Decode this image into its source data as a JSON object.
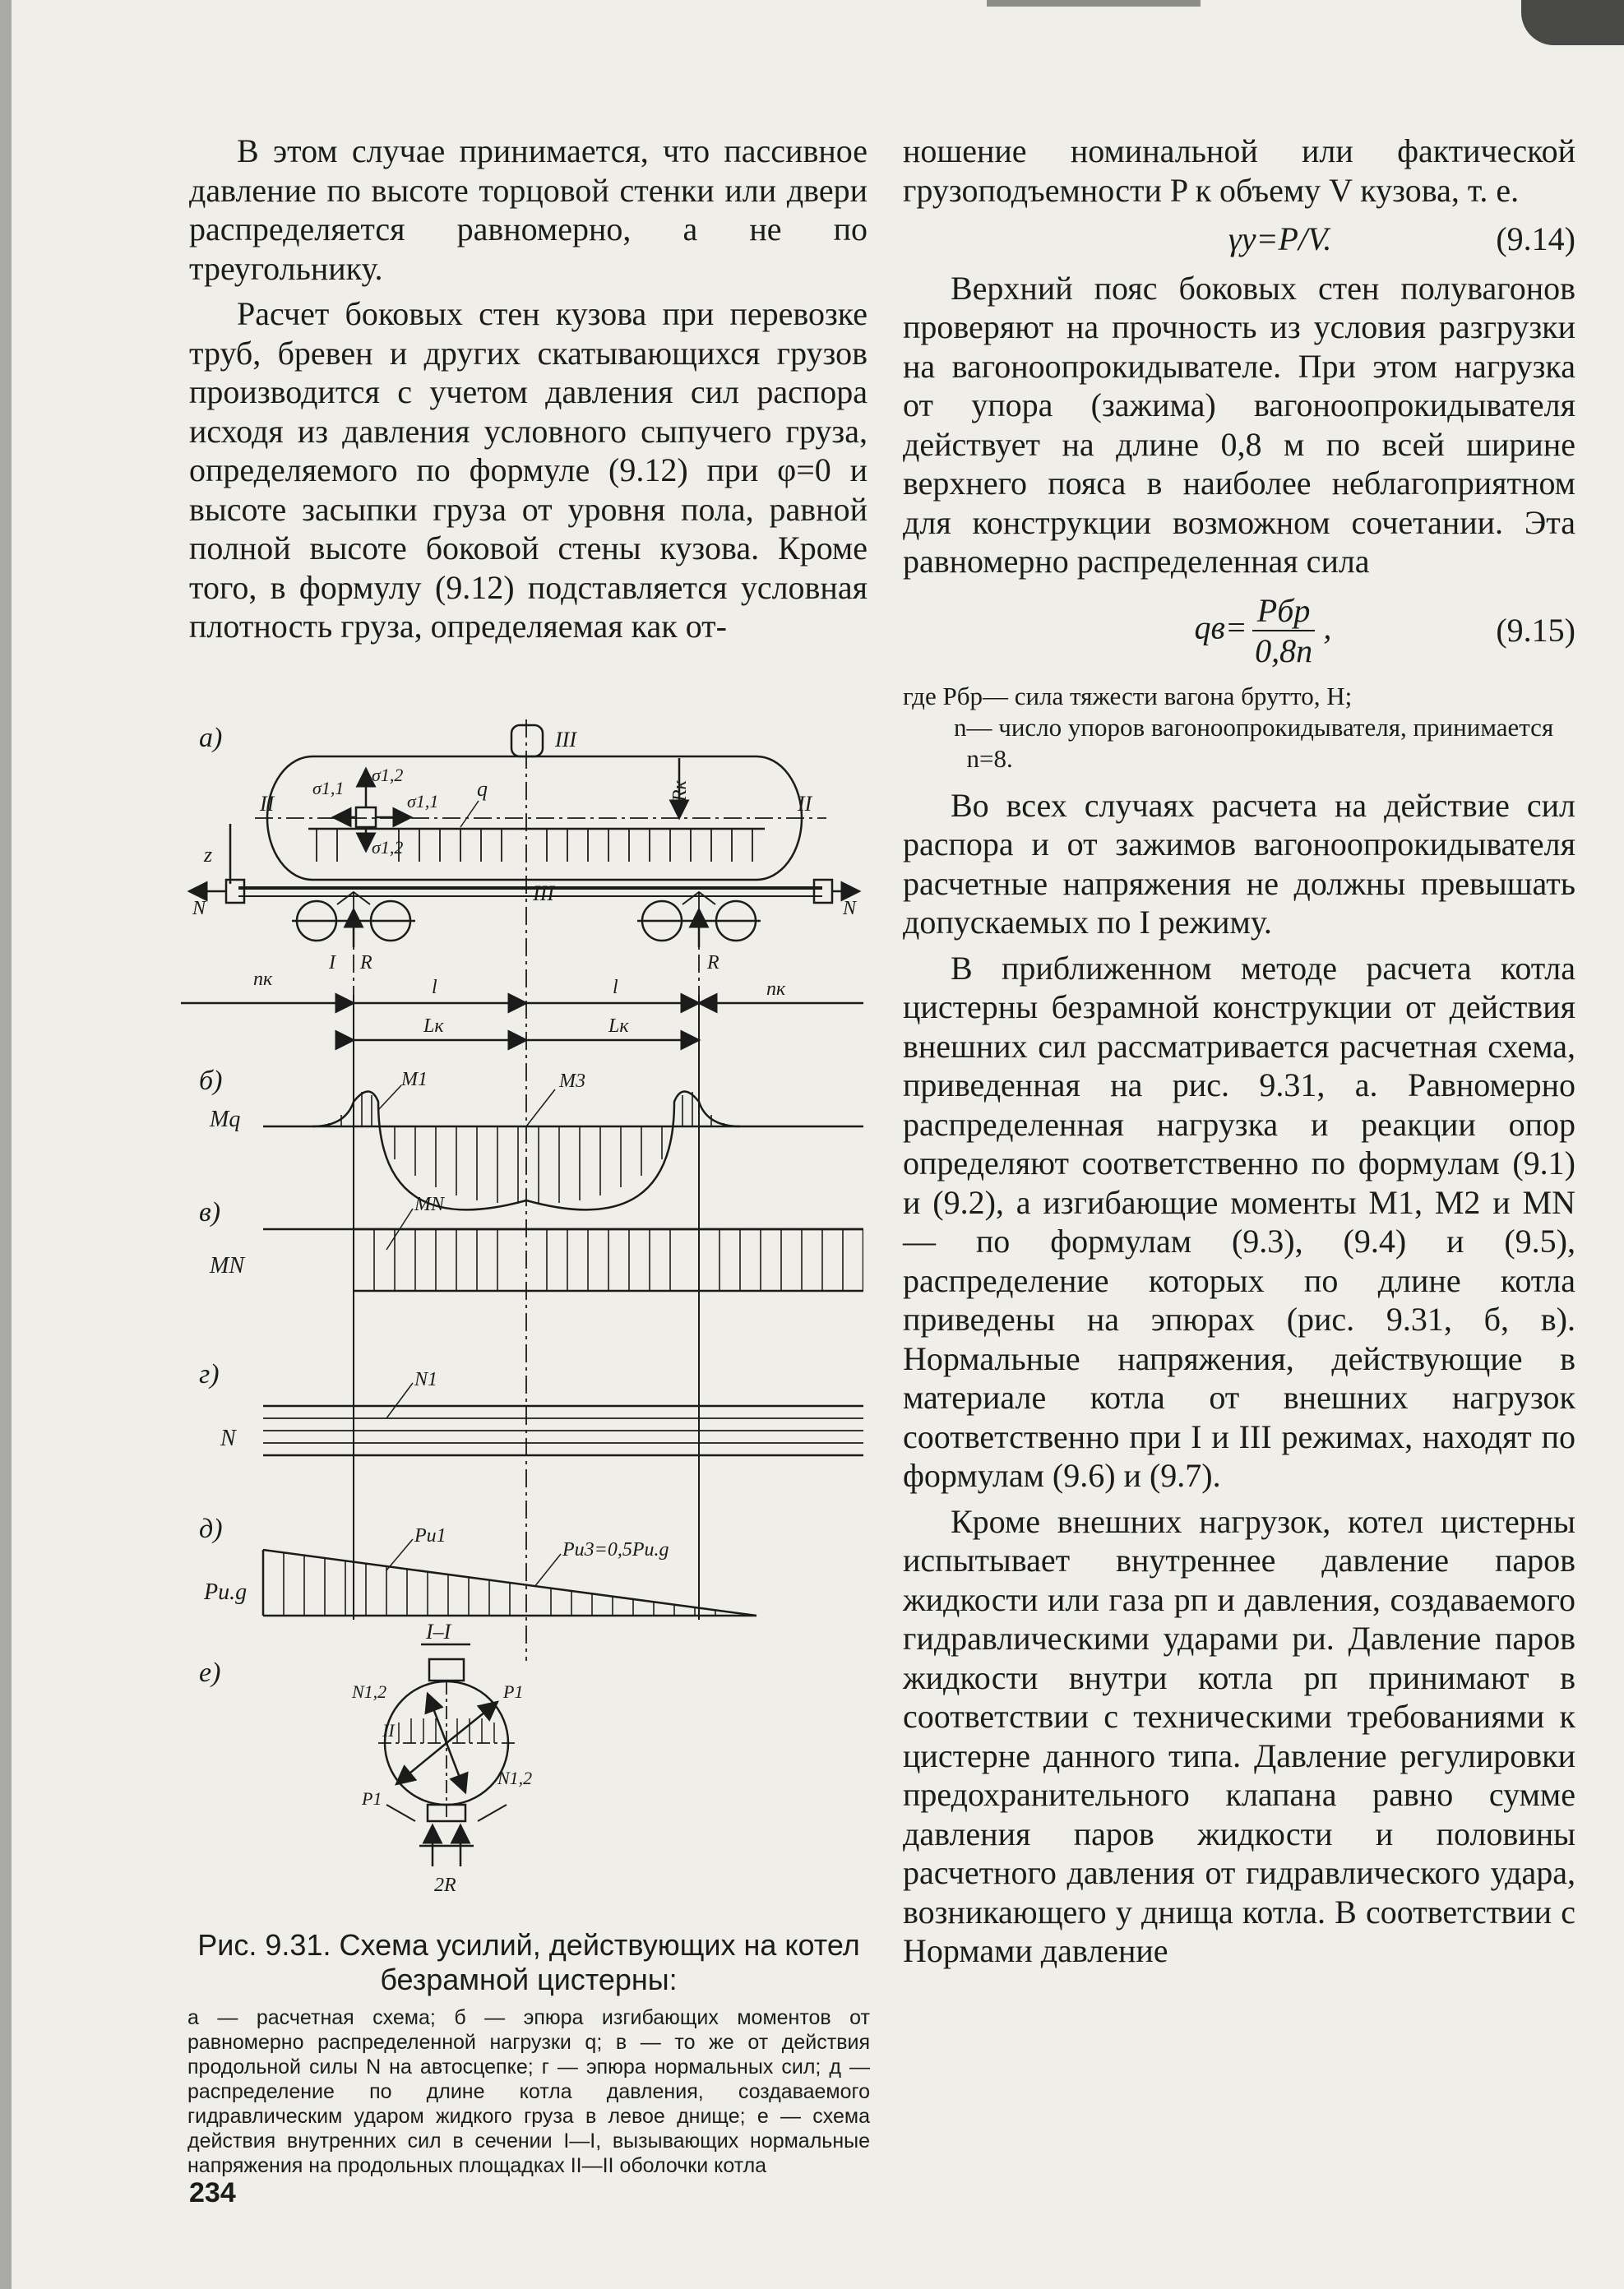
{
  "left_column": {
    "p1": "В этом случае принимается, что пассивное давление по высоте торцовой стенки или двери распределяется равномерно, а не по треугольнику.",
    "p2": "Расчет боковых стен кузова при перевозке труб, бревен и других скатывающихся грузов производится с учетом давления сил распора исходя из давления условного сыпучего груза, определяемого по формуле (9.12) при φ=0 и высоте засыпки груза от уровня пола, равной полной высоте боковой стены кузова. Кроме того, в формулу (9.12) подставляется условная плотность груза, определяемая как от-"
  },
  "right_column": {
    "p1": "ношение номинальной или фактической грузоподъемности P к объему V кузова, т. е.",
    "formula_914": {
      "expr": "γу=P/V.",
      "number": "(9.14)"
    },
    "p2": "Верхний пояс боковых стен полувагонов проверяют на прочность из условия разгрузки на вагоноопрокидывателе. При этом нагрузка от упора (зажима) вагоноопрокидывателя действует на длине 0,8 м по всей ширине верхнего пояса в наиболее неблагоприятном для конструкции возможном сочетании. Эта равномерно распределенная сила",
    "formula_915": {
      "lhs": "qв=",
      "numerator": "Pбр",
      "denominator": "0,8n",
      "tail": ",",
      "number": "(9.15)"
    },
    "where_1_lhs": "где Pбр",
    "where_1_rhs": " — сила тяжести вагона брутто, Н;",
    "where_2_lhs": "        n",
    "where_2_rhs": " — число упоров вагоноопрокидывателя, принимается n=8.",
    "p3": "Во всех случаях расчета на действие сил распора и от зажимов вагоноопрокидывателя расчетные напряжения не должны превышать допускаемых по I режиму.",
    "p4": "В приближенном методе расчета котла цистерны безрамной конструкции от действия внешних сил рассматривается расчетная схема, приведенная на рис. 9.31, а. Равномерно распределенная нагрузка и реакции опор определяют соответственно по формулам (9.1) и (9.2), а изгибающие моменты M1, M2 и MN — по формулам (9.3), (9.4) и (9.5), распределение которых по длине котла приведены на эпюрах (рис. 9.31, б, в). Нормальные напряжения, действующие в материале котла от внешних нагрузок соответственно при I и III режимах, находят по формулам (9.6) и (9.7).",
    "p5": "Кроме внешних нагрузок, котел цистерны испытывает внутреннее давление паров жидкости или газа pп и давления, создаваемого гидравлическими ударами pи. Давление паров жидкости внутри котла pп принимают в соответствии с техническими требованиями к цистерне данного типа. Давление регулировки предохранительного клапана равно сумме давления паров жидкости и половины расчетного давления от гидравлического удара, возникающего у днища котла. В соответствии с Нормами давление"
  },
  "figure": {
    "panel_labels": [
      "а)",
      "б)",
      "в)",
      "г)",
      "д)",
      "е)"
    ],
    "row_labels": {
      "mq": "Mq",
      "mn": "MN",
      "n": "N",
      "pug": "Pи.g"
    },
    "schematic": {
      "III": "III",
      "II": "II",
      "Rk": "Rк",
      "q": "q",
      "z": "z",
      "N": "N",
      "s11a": "σ1,1",
      "s12a": "σ1,2",
      "s11b": "σ1,1",
      "s12b": "σ1,2",
      "I": "I",
      "R": "R",
      "nk": "nк",
      "l": "l",
      "Lk": "Lк"
    },
    "epure_labels": {
      "M1": "M1",
      "M3": "M3",
      "MN": "MN",
      "N1": "N1",
      "Pu1": "Pи1",
      "Pu3": "Pи3=0,5Pи.g"
    },
    "section": {
      "title": "I–I",
      "N12": "N1,2",
      "P1": "P1",
      "II": "II",
      "twoR": "2R"
    }
  },
  "caption": {
    "title": "Рис. 9.31. Схема усилий, действующих на котел безрамной цистерны:",
    "legend": "а — расчетная схема; б — эпюра изгибающих моментов от равномерно распределенной нагрузки q; в — то же от действия продольной силы N на автосцепке; г — эпюра нормальных сил; д — распределение по длине котла давления, создаваемого гидравлическим ударом жидкого груза в левое днище; е — схема действия внутренних сил в сечении I—I, вызывающих нормальные напряжения на продольных площадках II—II оболочки котла"
  },
  "page_number": "234"
}
